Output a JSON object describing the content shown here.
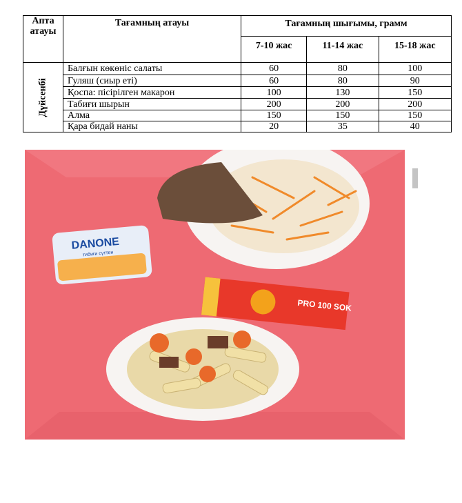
{
  "table": {
    "header": {
      "week_col": "Апта атауы",
      "dish_col": "Тағамның атауы",
      "yield_col": "Тағамның шығымы, грамм",
      "age_groups": [
        "7-10 жас",
        "11-14 жас",
        "15-18 жас"
      ]
    },
    "day": "Дүйсенбі",
    "rows": [
      {
        "dish": "Балғын көкөніс салаты",
        "values": [
          "60",
          "80",
          "100"
        ]
      },
      {
        "dish": "Гуляш (сиыр еті)",
        "values": [
          "60",
          "80",
          "90"
        ]
      },
      {
        "dish": "Қоспа:  пісірілген макарон",
        "values": [
          "100",
          "130",
          "150"
        ]
      },
      {
        "dish": "Табиғи шырын",
        "values": [
          "200",
          "200",
          "200"
        ]
      },
      {
        "dish": "Алма",
        "values": [
          "150",
          "150",
          "150"
        ]
      },
      {
        "dish": "Қара бидай наны",
        "values": [
          "20",
          "35",
          "40"
        ]
      }
    ]
  },
  "photo": {
    "yogurt_brand": "DANONE",
    "yogurt_label": "тибиғи сүттен",
    "juice_brand": "PRO 100 SOK",
    "background_color": "#f06a74"
  }
}
